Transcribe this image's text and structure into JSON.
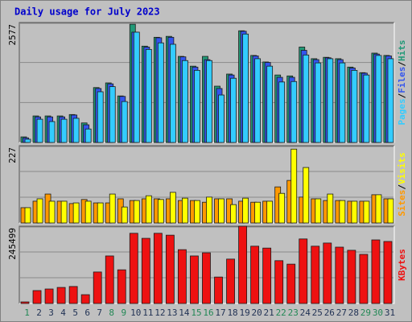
{
  "separator": "/",
  "chart_data": [
    {
      "type": "bar",
      "title": "Daily usage for July 2023",
      "ylim": [
        0,
        2577
      ],
      "yticks": [
        2577
      ],
      "grid": true,
      "grid_divisions": 3,
      "draw_reverse": true,
      "series": [
        {
          "name": "Pages",
          "color": "#33ccff",
          "values": [
            70,
            500,
            450,
            500,
            520,
            290,
            1090,
            1200,
            880,
            2370,
            2000,
            2140,
            2110,
            1760,
            1550,
            1760,
            1020,
            1380,
            2330,
            1800,
            1640,
            1300,
            1310,
            1880,
            1710,
            1800,
            1710,
            1550,
            1450,
            1870,
            1800
          ]
        },
        {
          "name": "Files",
          "color": "#3355ee",
          "values": [
            100,
            550,
            550,
            550,
            590,
            380,
            1160,
            1260,
            990,
            2370,
            2050,
            2250,
            2260,
            1840,
            1620,
            1780,
            1160,
            1450,
            2390,
            1860,
            1720,
            1400,
            1400,
            1980,
            1780,
            1820,
            1780,
            1600,
            1490,
            1900,
            1860
          ]
        },
        {
          "name": "Hits",
          "color": "#229977",
          "values": [
            120,
            570,
            570,
            570,
            600,
            420,
            1180,
            1280,
            1000,
            2540,
            2070,
            2260,
            2280,
            1850,
            1640,
            1850,
            1210,
            1470,
            2400,
            1870,
            1730,
            1450,
            1430,
            2050,
            1800,
            1830,
            1800,
            1620,
            1500,
            1920,
            1870
          ]
        }
      ]
    },
    {
      "type": "bar",
      "ylim": [
        0,
        227
      ],
      "yticks": [
        227
      ],
      "grid": true,
      "grid_divisions": 3,
      "draw_reverse": false,
      "series": [
        {
          "name": "Sites",
          "color": "#ff9900",
          "values": [
            45,
            64,
            85,
            64,
            57,
            69,
            59,
            59,
            71,
            66,
            71,
            71,
            71,
            66,
            66,
            61,
            71,
            71,
            64,
            61,
            64,
            106,
            125,
            76,
            71,
            66,
            66,
            64,
            64,
            83,
            71
          ]
        },
        {
          "name": "Visits",
          "color": "#ffff00",
          "values": [
            45,
            71,
            64,
            64,
            59,
            64,
            59,
            85,
            47,
            66,
            80,
            69,
            90,
            73,
            66,
            76,
            71,
            54,
            73,
            61,
            64,
            87,
            217,
            163,
            71,
            85,
            66,
            64,
            64,
            83,
            71
          ]
        }
      ]
    },
    {
      "type": "bar",
      "ylim": [
        0,
        245499
      ],
      "yticks": [
        245499
      ],
      "grid": true,
      "grid_divisions": 3,
      "draw_reverse": false,
      "categories": [
        "1",
        "2",
        "3",
        "4",
        "5",
        "6",
        "7",
        "8",
        "9",
        "10",
        "11",
        "12",
        "13",
        "14",
        "15",
        "16",
        "17",
        "18",
        "19",
        "20",
        "21",
        "22",
        "23",
        "24",
        "25",
        "26",
        "27",
        "28",
        "29",
        "30",
        "31"
      ],
      "category_colors": [
        "#228855",
        "#223355",
        "#223355",
        "#223355",
        "#223355",
        "#223355",
        "#223355",
        "#228855",
        "#228855",
        "#223355",
        "#223355",
        "#223355",
        "#223355",
        "#223355",
        "#228855",
        "#228855",
        "#223355",
        "#223355",
        "#223355",
        "#223355",
        "#223355",
        "#228855",
        "#228855",
        "#223355",
        "#223355",
        "#223355",
        "#223355",
        "#223355",
        "#228855",
        "#228855",
        "#223355"
      ],
      "series": [
        {
          "name": "KBytes",
          "color": "#ee1111",
          "values": [
            5000,
            41000,
            46000,
            51000,
            54000,
            28000,
            100000,
            151000,
            107000,
            223000,
            207000,
            223000,
            217000,
            171000,
            151000,
            161000,
            84000,
            141000,
            245499,
            182000,
            176000,
            136000,
            125000,
            205000,
            182000,
            192000,
            179000,
            169000,
            156000,
            202000,
            197000
          ]
        }
      ]
    }
  ]
}
